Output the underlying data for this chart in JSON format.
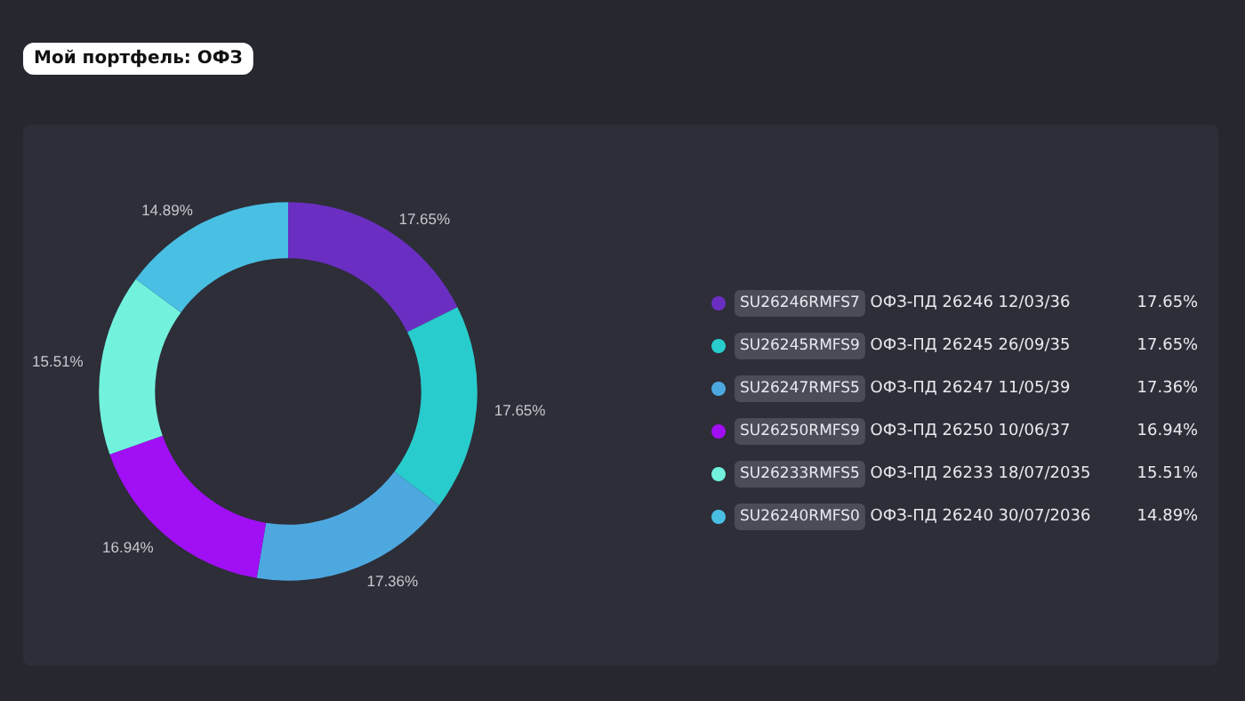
{
  "chart_data": {
    "type": "donut",
    "title": "Мой портфель: ОФЗ",
    "categories": [
      "SU26246RMFS7 ОФЗ-ПД 26246 12/03/36",
      "SU26245RMFS9 ОФЗ-ПД 26245 26/09/35",
      "SU26247RMFS5 ОФЗ-ПД 26247 11/05/39",
      "SU26250RMFS9 ОФЗ-ПД 26250 10/06/37",
      "SU26233RMFS5 ОФЗ-ПД 26233 18/07/2035",
      "SU26240RMFS0 ОФЗ-ПД 26240 30/07/2036"
    ],
    "values": [
      17.65,
      17.65,
      17.36,
      16.94,
      15.51,
      14.89
    ],
    "colors": [
      "#6a2fc2",
      "#29cccc",
      "#4ea8e0",
      "#a10ff5",
      "#72f2dd",
      "#48bfe3"
    ],
    "value_labels": [
      "17.65%",
      "17.65%",
      "17.36%",
      "16.94%",
      "15.51%",
      "14.89%"
    ],
    "legend": "right"
  }
}
